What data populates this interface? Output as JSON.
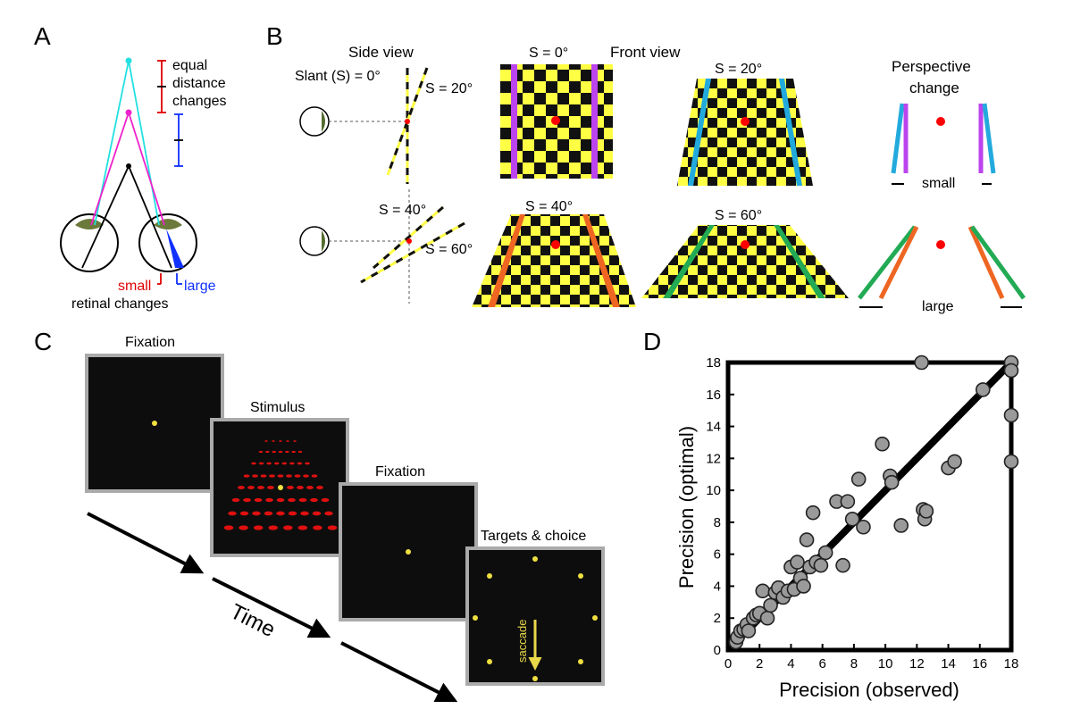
{
  "panels": {
    "a": "A",
    "b": "B",
    "c": "C",
    "d": "D"
  },
  "panel_a": {
    "equal_line1": "equal",
    "equal_line2": "distance",
    "equal_line3": "changes",
    "small": "small",
    "large": "large",
    "retinal": "retinal changes",
    "colors": {
      "cyan": "#22e0e0",
      "magenta": "#ee22cc",
      "black": "#000000",
      "red": "#e00000",
      "blue": "#1030ff",
      "green": "#556b2f"
    }
  },
  "panel_b": {
    "side_view": "Side view",
    "front_view": "Front view",
    "slant_label": "Slant (S) = 0°",
    "s20_side": "S = 20°",
    "s40_side": "S = 40°",
    "s60_side": "S = 60°",
    "s0_front": "S = 0°",
    "s20_front": "S = 20°",
    "s40_front": "S = 40°",
    "s60_front": "S = 60°",
    "perspective_line1": "Perspective",
    "perspective_line2": "change",
    "small": "small",
    "large": "large",
    "colors": {
      "yellow": "#ffff44",
      "purple": "#bb44ee",
      "blue": "#22aadd",
      "orange": "#ee6622",
      "green": "#22aa55",
      "red": "#ff0000"
    }
  },
  "panel_c": {
    "fixation1": "Fixation",
    "stimulus": "Stimulus",
    "fixation2": "Fixation",
    "targets": "Targets & choice",
    "saccade": "saccade",
    "time": "Time"
  },
  "chart_data": {
    "type": "scatter",
    "xlabel": "Precision (observed)",
    "ylabel": "Precision (optimal)",
    "xlim": [
      0,
      18
    ],
    "ylim": [
      0,
      18
    ],
    "xticks": [
      0,
      2,
      4,
      6,
      8,
      10,
      12,
      14,
      16,
      18
    ],
    "yticks": [
      0,
      2,
      4,
      6,
      8,
      10,
      12,
      14,
      16,
      18
    ],
    "identity_line": [
      [
        0,
        0
      ],
      [
        18,
        18
      ]
    ],
    "points": [
      [
        0.5,
        0.5
      ],
      [
        0.6,
        0.8
      ],
      [
        0.8,
        1.2
      ],
      [
        1.0,
        1.3
      ],
      [
        1.2,
        1.6
      ],
      [
        1.3,
        1.2
      ],
      [
        1.6,
        2.0
      ],
      [
        1.8,
        2.2
      ],
      [
        2.0,
        2.3
      ],
      [
        2.2,
        3.7
      ],
      [
        2.5,
        2.0
      ],
      [
        2.7,
        2.8
      ],
      [
        3.0,
        3.6
      ],
      [
        3.2,
        3.9
      ],
      [
        3.5,
        3.3
      ],
      [
        3.8,
        3.7
      ],
      [
        4.0,
        5.2
      ],
      [
        4.2,
        3.8
      ],
      [
        4.4,
        5.5
      ],
      [
        4.6,
        4.5
      ],
      [
        4.8,
        4.0
      ],
      [
        5.0,
        6.9
      ],
      [
        5.2,
        5.2
      ],
      [
        5.4,
        8.6
      ],
      [
        5.6,
        5.5
      ],
      [
        5.9,
        5.3
      ],
      [
        6.2,
        6.1
      ],
      [
        6.9,
        9.3
      ],
      [
        7.3,
        5.3
      ],
      [
        7.6,
        9.3
      ],
      [
        7.9,
        8.2
      ],
      [
        8.3,
        10.7
      ],
      [
        8.6,
        7.7
      ],
      [
        9.8,
        12.9
      ],
      [
        10.3,
        10.9
      ],
      [
        10.4,
        10.5
      ],
      [
        11.0,
        7.8
      ],
      [
        12.3,
        18.0
      ],
      [
        12.4,
        8.8
      ],
      [
        12.5,
        8.2
      ],
      [
        12.6,
        8.7
      ],
      [
        14.0,
        11.4
      ],
      [
        14.4,
        11.8
      ],
      [
        16.2,
        16.3
      ],
      [
        18.0,
        18.0
      ],
      [
        18.0,
        17.5
      ],
      [
        18.0,
        14.7
      ],
      [
        18.0,
        11.8
      ]
    ]
  }
}
